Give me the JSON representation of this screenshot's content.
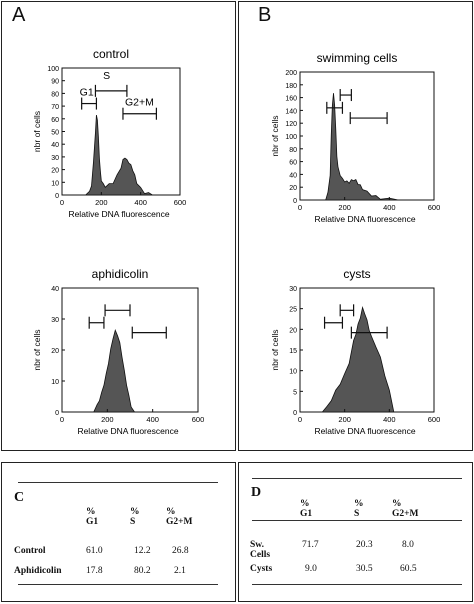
{
  "figure": {
    "panel_a": {
      "letter": "A"
    },
    "panel_b": {
      "letter": "B"
    }
  },
  "histograms": [
    {
      "id": "control",
      "title": "control",
      "ylabel": "nbr of cells",
      "xlabel": "Relative DNA fluorescence",
      "x_ticks": [
        0,
        200,
        400,
        600
      ],
      "y_ticks": [
        0,
        10,
        20,
        30,
        40,
        50,
        60,
        70,
        80,
        90,
        100
      ],
      "xlim": [
        0,
        600
      ],
      "ylim": [
        0,
        100
      ],
      "gate_labels": [
        "G1",
        "S",
        "G2+M"
      ]
    },
    {
      "id": "swimming",
      "title": "swimming cells",
      "ylabel": "nbr of cells",
      "xlabel": "Relative DNA fluorescence",
      "x_ticks": [
        0,
        200,
        400,
        600
      ],
      "y_ticks": [
        0,
        20,
        40,
        60,
        80,
        100,
        120,
        140,
        160,
        180,
        200
      ],
      "xlim": [
        0,
        600
      ],
      "ylim": [
        0,
        200
      ],
      "gate_labels": []
    },
    {
      "id": "aphidicolin",
      "title": "aphidicolin",
      "ylabel": "nbr of cells",
      "xlabel": "Relative DNA fluorescence",
      "x_ticks": [
        0,
        200,
        400,
        600
      ],
      "y_ticks": [
        0,
        10,
        20,
        30,
        40
      ],
      "xlim": [
        0,
        600
      ],
      "ylim": [
        0,
        40
      ],
      "gate_labels": []
    },
    {
      "id": "cysts",
      "title": "cysts",
      "ylabel": "nbr of cells",
      "xlabel": "Relative DNA fluorescence",
      "x_ticks": [
        0,
        200,
        400,
        600
      ],
      "y_ticks": [
        0,
        5,
        10,
        15,
        20,
        25,
        30
      ],
      "xlim": [
        0,
        600
      ],
      "ylim": [
        0,
        30
      ],
      "gate_labels": []
    }
  ],
  "tables": {
    "c": {
      "letter": "C",
      "headers": [
        "% G1",
        "% S",
        "% G2+M"
      ],
      "rows": [
        {
          "label": "Control",
          "values": [
            "61.0",
            "12.2",
            "26.8"
          ]
        },
        {
          "label": "Aphidicolin",
          "values": [
            "17.8",
            "80.2",
            "2.1"
          ]
        }
      ]
    },
    "d": {
      "letter": "D",
      "headers": [
        "% G1",
        "% S",
        "% G2+M"
      ],
      "rows": [
        {
          "label": "Sw. Cells",
          "values": [
            "71.7",
            "20.3",
            "8.0"
          ]
        },
        {
          "label": "Cysts",
          "values": [
            "9.0",
            "30.5",
            "60.5"
          ]
        }
      ]
    }
  },
  "chart_data": [
    {
      "type": "area",
      "title": "control",
      "xlabel": "Relative DNA fluorescence",
      "ylabel": "nbr of cells",
      "xlim": [
        0,
        600
      ],
      "ylim": [
        0,
        100
      ],
      "x": [
        120,
        140,
        150,
        160,
        170,
        175,
        180,
        185,
        190,
        195,
        200,
        210,
        220,
        240,
        260,
        280,
        300,
        310,
        320,
        330,
        340,
        350,
        360,
        370,
        380,
        400,
        420,
        440,
        460
      ],
      "y": [
        0,
        2,
        8,
        25,
        50,
        62,
        60,
        45,
        30,
        18,
        12,
        8,
        7,
        8,
        10,
        15,
        22,
        27,
        30,
        27,
        26,
        23,
        20,
        15,
        10,
        5,
        2,
        1,
        0
      ],
      "gates": [
        [
          100,
          175
        ],
        [
          170,
          330
        ],
        [
          310,
          480
        ]
      ]
    },
    {
      "type": "area",
      "title": "swimming cells",
      "xlabel": "Relative DNA fluorescence",
      "ylabel": "nbr of cells",
      "xlim": [
        0,
        600
      ],
      "ylim": [
        0,
        200
      ],
      "x": [
        115,
        125,
        135,
        140,
        145,
        150,
        155,
        160,
        165,
        170,
        180,
        190,
        200,
        210,
        220,
        230,
        240,
        250,
        260,
        270,
        280,
        300,
        320,
        340,
        360,
        400,
        440
      ],
      "y": [
        0,
        10,
        40,
        100,
        150,
        165,
        150,
        110,
        70,
        50,
        40,
        32,
        30,
        28,
        28,
        30,
        32,
        30,
        26,
        22,
        18,
        12,
        8,
        5,
        3,
        1,
        0
      ],
      "gates": [
        [
          120,
          190
        ],
        [
          180,
          230
        ],
        [
          225,
          390
        ]
      ]
    },
    {
      "type": "area",
      "title": "aphidicolin",
      "xlabel": "Relative DNA fluorescence",
      "ylabel": "nbr of cells",
      "xlim": [
        0,
        600
      ],
      "ylim": [
        0,
        40
      ],
      "x": [
        140,
        155,
        165,
        175,
        185,
        195,
        205,
        215,
        225,
        235,
        245,
        255,
        265,
        275,
        285,
        295,
        305,
        320
      ],
      "y": [
        0,
        2,
        4,
        6,
        9,
        12,
        16,
        20,
        24,
        26,
        25,
        22,
        18,
        13,
        9,
        5,
        2,
        0
      ],
      "gates": [
        [
          120,
          185
        ],
        [
          190,
          300
        ],
        [
          310,
          460
        ]
      ]
    },
    {
      "type": "area",
      "title": "cysts",
      "xlabel": "Relative DNA fluorescence",
      "ylabel": "nbr of cells",
      "xlim": [
        0,
        600
      ],
      "ylim": [
        0,
        30
      ],
      "x": [
        100,
        120,
        140,
        160,
        180,
        200,
        220,
        240,
        250,
        260,
        270,
        280,
        290,
        300,
        310,
        320,
        340,
        360,
        380,
        400,
        420
      ],
      "y": [
        0,
        1,
        3,
        5,
        7,
        9,
        12,
        17,
        19,
        21,
        23,
        25,
        24,
        22,
        20,
        18,
        16,
        13,
        9,
        5,
        0
      ],
      "gates": [
        [
          110,
          190
        ],
        [
          180,
          240
        ],
        [
          230,
          390
        ]
      ]
    }
  ]
}
